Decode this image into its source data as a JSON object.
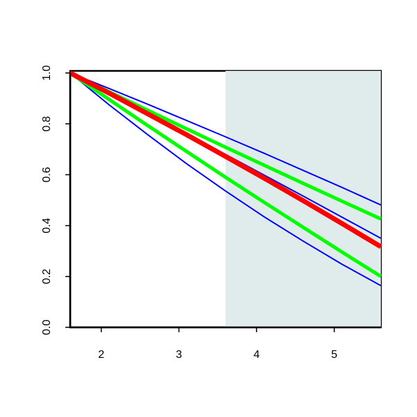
{
  "chart_data": {
    "type": "line",
    "x": [
      1.6,
      2.1,
      2.6,
      3.1,
      3.6,
      4.1,
      4.6,
      5.1,
      5.6
    ],
    "series": [
      {
        "color": "#0000ff",
        "width": 2,
        "values": [
          1,
          0.939,
          0.877,
          0.813,
          0.749,
          0.684,
          0.617,
          0.55,
          0.481
        ]
      },
      {
        "color": "#0000ff",
        "width": 2,
        "values": [
          1,
          0.921,
          0.841,
          0.761,
          0.68,
          0.598,
          0.516,
          0.433,
          0.35
        ]
      },
      {
        "color": "#0000ff",
        "width": 2,
        "values": [
          1,
          0.875,
          0.757,
          0.643,
          0.536,
          0.434,
          0.339,
          0.248,
          0.164
        ]
      },
      {
        "color": "#00ff00",
        "width": 5,
        "values": [
          1,
          0.926,
          0.853,
          0.78,
          0.708,
          0.637,
          0.566,
          0.496,
          0.426
        ]
      },
      {
        "color": "#00ff00",
        "width": 5,
        "values": [
          1,
          0.896,
          0.793,
          0.691,
          0.59,
          0.491,
          0.393,
          0.296,
          0.2
        ]
      },
      {
        "color": "#ff0000",
        "width": 7,
        "values": [
          1,
          0.921,
          0.839,
          0.757,
          0.672,
          0.586,
          0.498,
          0.408,
          0.317
        ]
      }
    ],
    "xlim": [
      1.6,
      5.6
    ],
    "ylim": [
      0,
      1
    ],
    "xticks": [
      2,
      3,
      4,
      5
    ],
    "yticks": [
      {
        "value": 0,
        "label": "0.0"
      },
      {
        "value": 0.2,
        "label": "0.2"
      },
      {
        "value": 0.4,
        "label": "0.4"
      },
      {
        "value": 0.6,
        "label": "0.6"
      },
      {
        "value": 0.8,
        "label": "0.8"
      },
      {
        "value": 1,
        "label": "1.0"
      }
    ],
    "shaded_region": [
      3.6,
      5.6
    ],
    "shade_color": "#e0ecec"
  }
}
